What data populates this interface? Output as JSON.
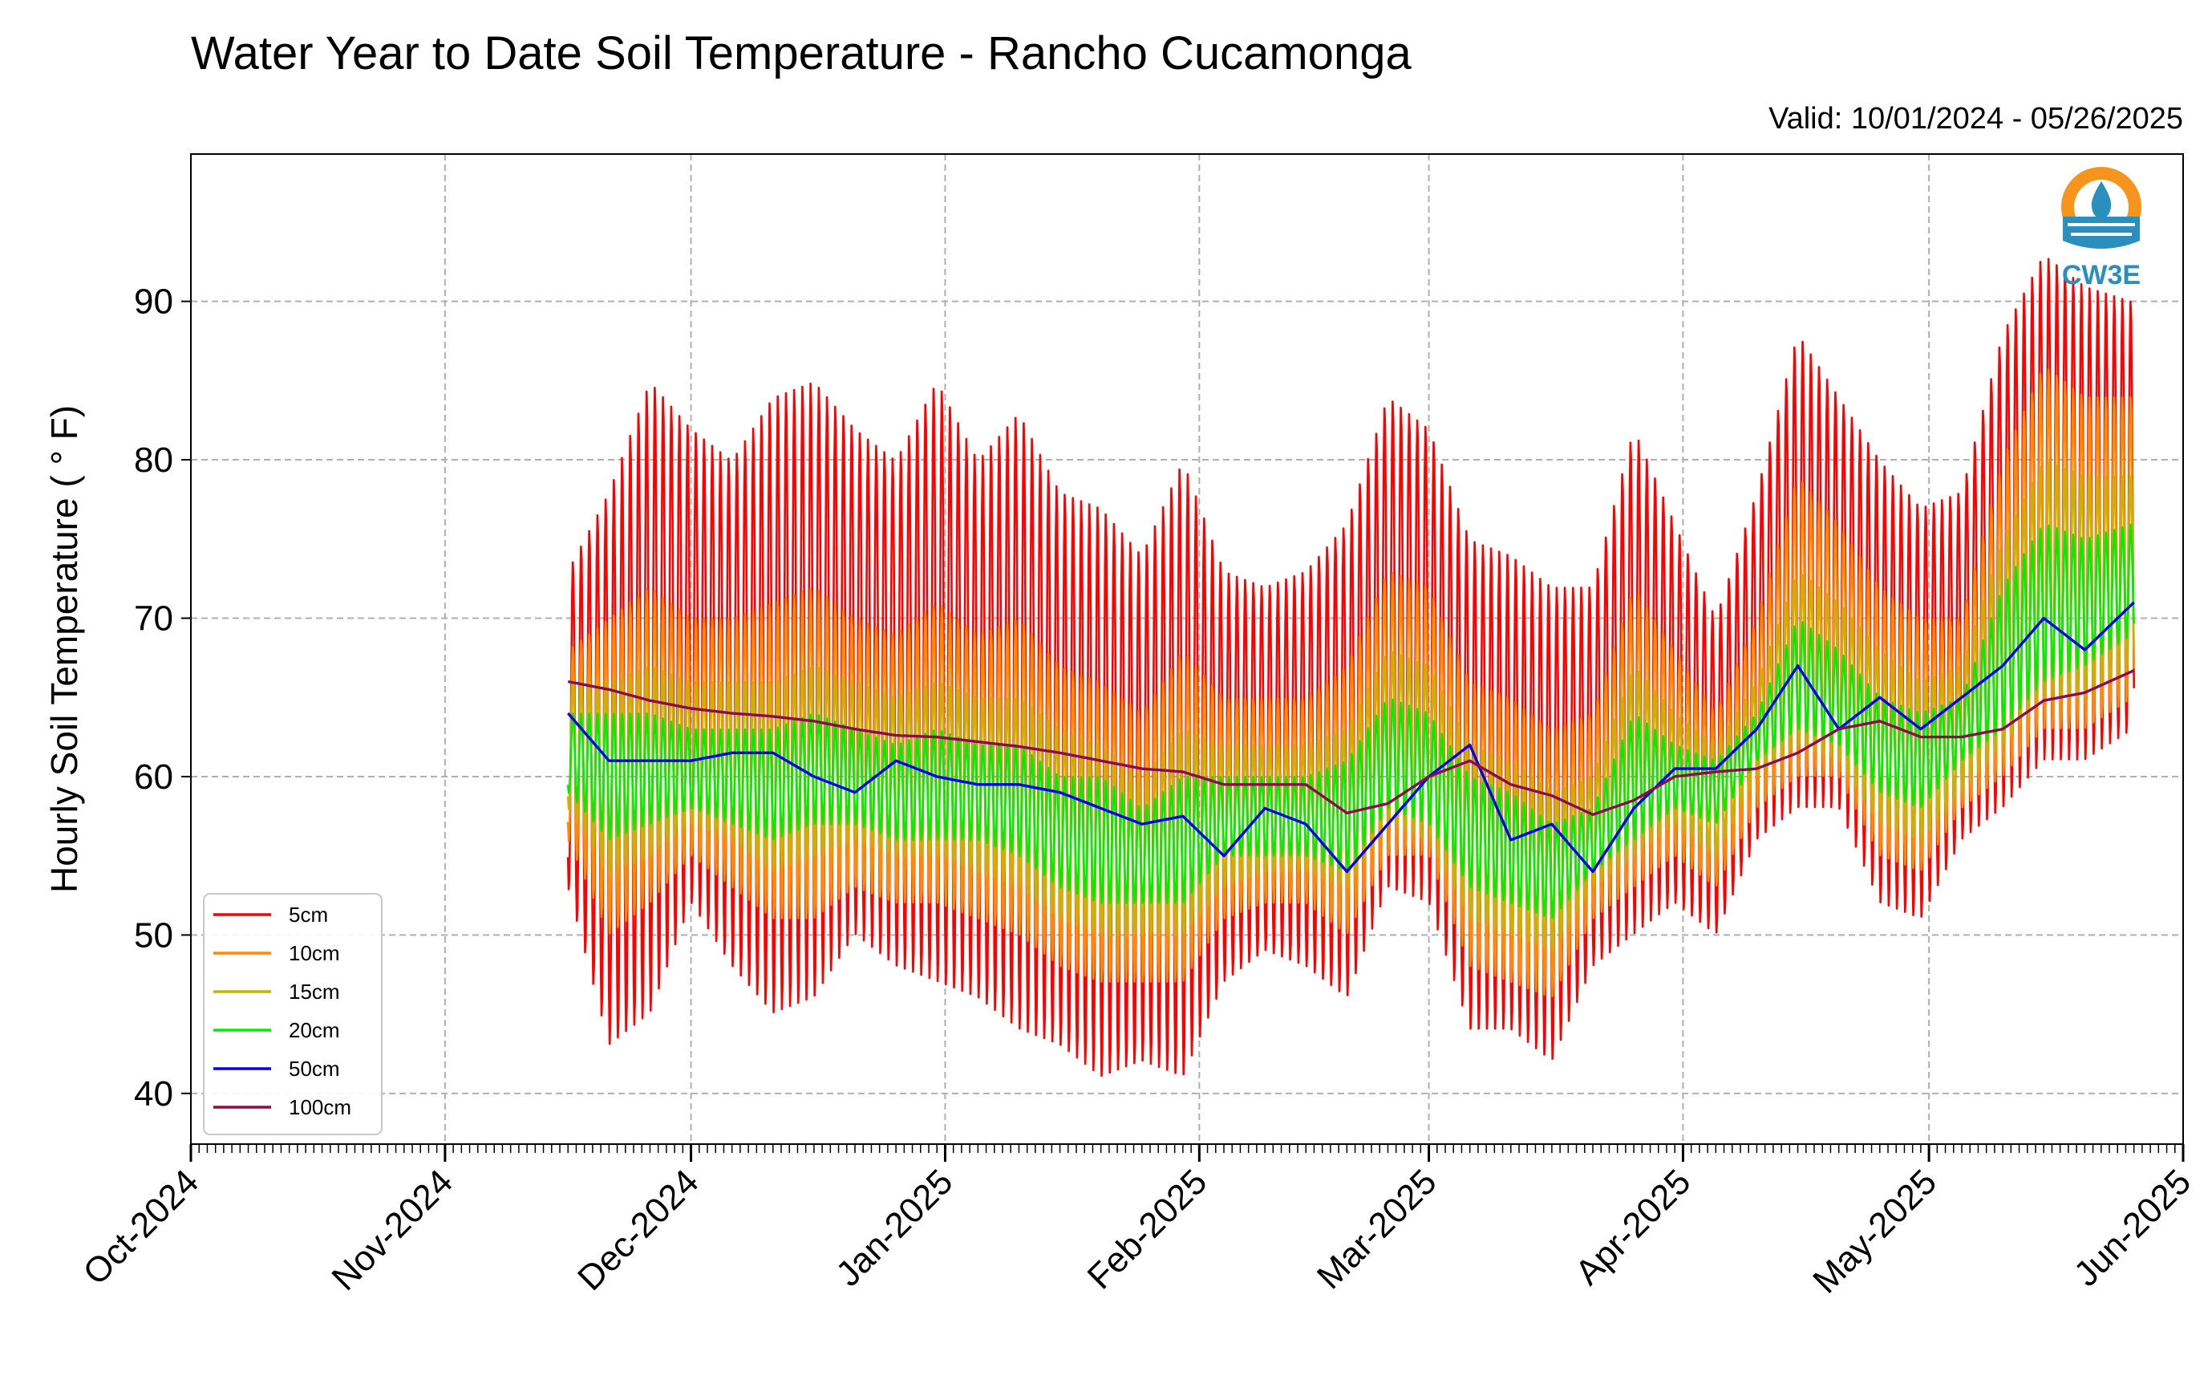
{
  "chart_data": {
    "type": "line",
    "title": "Water Year to Date Soil Temperature - Rancho Cucamonga",
    "subtitle": "Valid: 10/01/2024 - 05/26/2025",
    "ylabel": "Hourly Soil Temperature ( ° F)",
    "xlabel": "",
    "x_range": [
      "2024-10-01",
      "2025-06-01"
    ],
    "ylim": [
      36.8,
      99.3
    ],
    "yticks": [
      40,
      50,
      60,
      70,
      80,
      90
    ],
    "xtick_labels": [
      "Oct-2024",
      "Nov-2024",
      "Dec-2024",
      "Jan-2025",
      "Feb-2025",
      "Mar-2025",
      "Apr-2025",
      "May-2025",
      "Jun-2025"
    ],
    "xtick_dates": [
      "2024-10-01",
      "2024-11-01",
      "2024-12-01",
      "2025-01-01",
      "2025-02-01",
      "2025-03-01",
      "2025-04-01",
      "2025-05-01",
      "2025-06-01"
    ],
    "grid": true,
    "legend_position": "lower-left",
    "logo_text": "CW3E",
    "dates": [
      "2024-11-16",
      "2024-11-21",
      "2024-11-26",
      "2024-12-01",
      "2024-12-06",
      "2024-12-11",
      "2024-12-16",
      "2024-12-21",
      "2024-12-26",
      "2024-12-31",
      "2025-01-05",
      "2025-01-10",
      "2025-01-15",
      "2025-01-20",
      "2025-01-25",
      "2025-01-30",
      "2025-02-04",
      "2025-02-09",
      "2025-02-14",
      "2025-02-19",
      "2025-02-24",
      "2025-03-01",
      "2025-03-06",
      "2025-03-11",
      "2025-03-16",
      "2025-03-21",
      "2025-03-26",
      "2025-03-31",
      "2025-04-05",
      "2025-04-10",
      "2025-04-15",
      "2025-04-20",
      "2025-04-25",
      "2025-04-30",
      "2025-05-05",
      "2025-05-10",
      "2025-05-15",
      "2025-05-20",
      "2025-05-26"
    ],
    "series": [
      {
        "name": "5cm",
        "color": "#ff0000",
        "kind": "diurnal",
        "max": [
          73,
          78,
          85,
          82,
          80,
          84,
          85,
          82,
          80,
          85,
          80,
          83,
          78,
          77,
          74,
          80,
          73,
          72,
          73,
          76,
          84,
          82,
          75,
          74,
          72,
          72,
          82,
          76,
          70,
          78,
          88,
          84,
          80,
          77,
          78,
          88,
          93,
          91,
          90
        ],
        "min": [
          53,
          43,
          45,
          52,
          48,
          45,
          46,
          50,
          48,
          47,
          46,
          44,
          43,
          41,
          42,
          41,
          47,
          49,
          48,
          46,
          53,
          52,
          44,
          44,
          42,
          48,
          50,
          52,
          50,
          56,
          58,
          58,
          52,
          51,
          56,
          58,
          61,
          61,
          63
        ]
      },
      {
        "name": "10cm",
        "color": "#ff8c00",
        "kind": "diurnal",
        "max": [
          68,
          70,
          72,
          70,
          70,
          71,
          72,
          70,
          69,
          71,
          69,
          70,
          67,
          66,
          64,
          68,
          65,
          65,
          65,
          67,
          73,
          72,
          66,
          65,
          63,
          64,
          72,
          68,
          64,
          70,
          79,
          76,
          72,
          70,
          70,
          80,
          86,
          84,
          84
        ],
        "min": [
          56,
          50,
          52,
          55,
          53,
          51,
          51,
          53,
          52,
          52,
          51,
          50,
          48,
          47,
          47,
          47,
          51,
          52,
          52,
          50,
          55,
          55,
          48,
          47,
          46,
          51,
          53,
          55,
          53,
          58,
          60,
          60,
          55,
          54,
          58,
          60,
          63,
          63,
          65
        ]
      },
      {
        "name": "15cm",
        "color": "#c8b400",
        "kind": "diurnal",
        "max": [
          66,
          66,
          67,
          66,
          66,
          66,
          67,
          66,
          65,
          66,
          65,
          65,
          63,
          62,
          60,
          63,
          62,
          62,
          62,
          63,
          68,
          67,
          62,
          61,
          59,
          60,
          67,
          64,
          62,
          66,
          73,
          71,
          68,
          66,
          67,
          75,
          80,
          79,
          79
        ],
        "min": [
          58,
          54,
          55,
          57,
          56,
          54,
          55,
          56,
          55,
          55,
          54,
          53,
          51,
          50,
          50,
          50,
          53,
          54,
          54,
          53,
          57,
          56,
          51,
          50,
          49,
          53,
          55,
          57,
          55,
          60,
          62,
          61,
          57,
          56,
          59,
          62,
          65,
          65,
          67
        ]
      },
      {
        "name": "20cm",
        "color": "#00ee00",
        "kind": "diurnal",
        "max": [
          64,
          64,
          64,
          63,
          63,
          63,
          64,
          63,
          62,
          63,
          62,
          62,
          60,
          60,
          58,
          60,
          60,
          60,
          60,
          61,
          65,
          64,
          60,
          59,
          57,
          58,
          64,
          62,
          61,
          64,
          70,
          68,
          65,
          64,
          65,
          72,
          76,
          75,
          76
        ],
        "min": [
          59,
          56,
          57,
          58,
          57,
          56,
          57,
          57,
          56,
          56,
          56,
          55,
          53,
          52,
          52,
          52,
          55,
          55,
          55,
          54,
          58,
          57,
          53,
          52,
          51,
          54,
          56,
          58,
          57,
          61,
          63,
          62,
          59,
          58,
          61,
          63,
          66,
          67,
          69
        ]
      },
      {
        "name": "50cm",
        "color": "#0000ee",
        "kind": "smooth",
        "values": [
          64,
          61,
          61,
          61,
          61.5,
          61.5,
          60,
          59,
          61,
          60,
          59.5,
          59.5,
          59,
          58,
          57,
          57.5,
          55,
          58,
          57,
          54,
          57,
          60,
          62,
          56,
          57,
          54,
          58,
          60.5,
          60.5,
          63,
          67,
          63,
          65,
          63,
          65,
          67,
          70,
          68,
          71
        ]
      },
      {
        "name": "100cm",
        "color": "#8b0a50",
        "kind": "smooth",
        "values": [
          66,
          65.5,
          64.8,
          64.3,
          64,
          63.8,
          63.5,
          63,
          62.6,
          62.5,
          62.2,
          61.9,
          61.5,
          61,
          60.5,
          60.3,
          59.5,
          59.5,
          59.5,
          57.7,
          58.3,
          60,
          61,
          59.5,
          58.8,
          57.6,
          58.5,
          60,
          60.3,
          60.5,
          61.5,
          63,
          63.5,
          62.5,
          62.5,
          63,
          64.8,
          65.3,
          66.7
        ]
      }
    ]
  }
}
